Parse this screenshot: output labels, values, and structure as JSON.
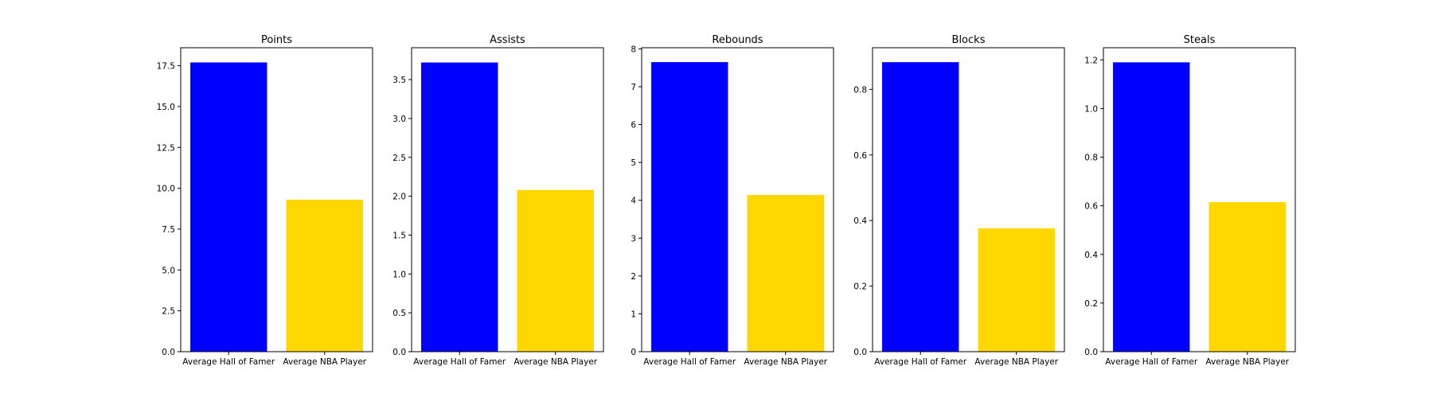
{
  "chart_data": [
    {
      "type": "bar",
      "title": "Points",
      "categories": [
        "Average Hall of Famer",
        "Average NBA Player"
      ],
      "values": [
        17.7,
        9.3
      ],
      "colors": [
        "#0000ff",
        "#ffd700"
      ],
      "ylim": [
        0,
        18.6
      ],
      "yticks": [
        0,
        2.5,
        5,
        7.5,
        10,
        12.5,
        15,
        17.5
      ],
      "ytick_labels": [
        "0.0",
        "2.5",
        "5.0",
        "7.5",
        "10.0",
        "12.5",
        "15.0",
        "17.5"
      ],
      "xlabel": "",
      "ylabel": "",
      "grid": false
    },
    {
      "type": "bar",
      "title": "Assists",
      "categories": [
        "Average Hall of Famer",
        "Average NBA Player"
      ],
      "values": [
        3.72,
        2.08
      ],
      "colors": [
        "#0000ff",
        "#ffd700"
      ],
      "ylim": [
        0,
        3.91
      ],
      "yticks": [
        0,
        0.5,
        1,
        1.5,
        2,
        2.5,
        3,
        3.5
      ],
      "ytick_labels": [
        "0.0",
        "0.5",
        "1.0",
        "1.5",
        "2.0",
        "2.5",
        "3.0",
        "3.5"
      ],
      "xlabel": "",
      "ylabel": "",
      "grid": false
    },
    {
      "type": "bar",
      "title": "Rebounds",
      "categories": [
        "Average Hall of Famer",
        "Average NBA Player"
      ],
      "values": [
        7.65,
        4.14
      ],
      "colors": [
        "#0000ff",
        "#ffd700"
      ],
      "ylim": [
        0,
        8.03
      ],
      "yticks": [
        0,
        1,
        2,
        3,
        4,
        5,
        6,
        7,
        8
      ],
      "ytick_labels": [
        "0",
        "1",
        "2",
        "3",
        "4",
        "5",
        "6",
        "7",
        "8"
      ],
      "xlabel": "",
      "ylabel": "",
      "grid": false
    },
    {
      "type": "bar",
      "title": "Blocks",
      "categories": [
        "Average Hall of Famer",
        "Average NBA Player"
      ],
      "values": [
        0.883,
        0.376
      ],
      "colors": [
        "#0000ff",
        "#ffd700"
      ],
      "ylim": [
        0,
        0.927
      ],
      "yticks": [
        0,
        0.2,
        0.4,
        0.6,
        0.8
      ],
      "ytick_labels": [
        "0.0",
        "0.2",
        "0.4",
        "0.6",
        "0.8"
      ],
      "xlabel": "",
      "ylabel": "",
      "grid": false
    },
    {
      "type": "bar",
      "title": "Steals",
      "categories": [
        "Average Hall of Famer",
        "Average NBA Player"
      ],
      "values": [
        1.19,
        0.615
      ],
      "colors": [
        "#0000ff",
        "#ffd700"
      ],
      "ylim": [
        0,
        1.25
      ],
      "yticks": [
        0,
        0.2,
        0.4,
        0.6,
        0.8,
        1.0,
        1.2
      ],
      "ytick_labels": [
        "0.0",
        "0.2",
        "0.4",
        "0.6",
        "0.8",
        "1.0",
        "1.2"
      ],
      "xlabel": "",
      "ylabel": "",
      "grid": false
    }
  ]
}
